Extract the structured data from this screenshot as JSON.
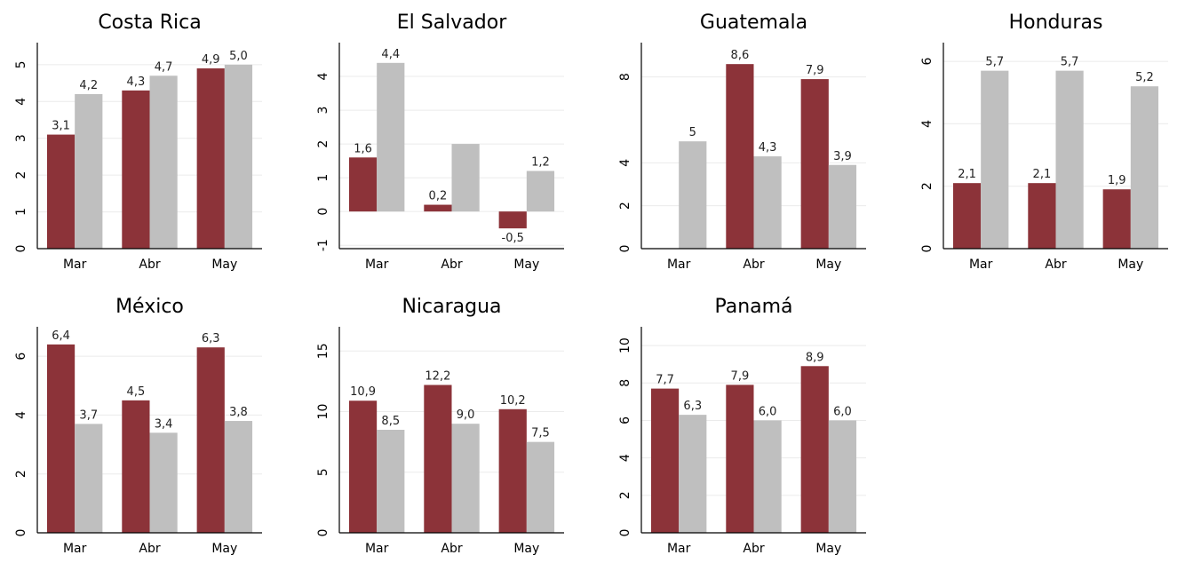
{
  "colors": {
    "series_a": "#8c3339",
    "series_b": "#bfbfbf"
  },
  "chart_data": [
    {
      "type": "bar",
      "title": "Costa Rica",
      "categories": [
        "Mar",
        "Abr",
        "May"
      ],
      "series": [
        {
          "values": [
            3.1,
            4.3,
            4.9
          ]
        },
        {
          "values": [
            4.2,
            4.7,
            5.0
          ]
        }
      ],
      "labels": [
        [
          "3,1",
          "4,3",
          "4,9"
        ],
        [
          "4,2",
          "4,7",
          "5,0"
        ]
      ],
      "yticks": [
        0,
        1,
        2,
        3,
        4,
        5
      ],
      "ylim": [
        0,
        5.6
      ],
      "grid": true
    },
    {
      "type": "bar",
      "title": "El Salvador",
      "categories": [
        "Mar",
        "Abr",
        "May"
      ],
      "series": [
        {
          "values": [
            1.6,
            0.2,
            -0.5
          ]
        },
        {
          "values": [
            4.4,
            2.0,
            1.2
          ]
        }
      ],
      "labels": [
        [
          "1,6",
          "0,2",
          "-0,5"
        ],
        [
          "4,4",
          "",
          "1,2"
        ]
      ],
      "yticks": [
        -1,
        0,
        1,
        2,
        3,
        4
      ],
      "ylim": [
        -1.1,
        5.0
      ],
      "grid": true
    },
    {
      "type": "bar",
      "title": "Guatemala",
      "categories": [
        "Mar",
        "Abr",
        "May"
      ],
      "series": [
        {
          "values": [
            0,
            8.6,
            7.9
          ]
        },
        {
          "values": [
            5,
            4.3,
            3.9
          ]
        }
      ],
      "labels": [
        [
          "",
          "8,6",
          "7,9"
        ],
        [
          "5",
          "4,3",
          "3,9"
        ]
      ],
      "yticks": [
        0,
        2,
        4,
        8
      ],
      "ylim": [
        0,
        9.6
      ],
      "grid": true
    },
    {
      "type": "bar",
      "title": "Honduras",
      "categories": [
        "Mar",
        "Abr",
        "May"
      ],
      "series": [
        {
          "values": [
            2.1,
            2.1,
            1.9
          ]
        },
        {
          "values": [
            5.7,
            5.7,
            5.2
          ]
        }
      ],
      "labels": [
        [
          "2,1",
          "2,1",
          "1,9"
        ],
        [
          "5,7",
          "5,7",
          "5,2"
        ]
      ],
      "yticks": [
        0,
        2,
        4,
        6
      ],
      "ylim": [
        0,
        6.6
      ],
      "grid": true
    },
    {
      "type": "bar",
      "title": "México",
      "categories": [
        "Mar",
        "Abr",
        "May"
      ],
      "series": [
        {
          "values": [
            6.4,
            4.5,
            6.3
          ]
        },
        {
          "values": [
            3.7,
            3.4,
            3.8
          ]
        }
      ],
      "labels": [
        [
          "6,4",
          "4,5",
          "6,3"
        ],
        [
          "3,7",
          "3,4",
          "3,8"
        ]
      ],
      "yticks": [
        0,
        2,
        4,
        6
      ],
      "ylim": [
        0,
        7.0
      ],
      "grid": true
    },
    {
      "type": "bar",
      "title": "Nicaragua",
      "categories": [
        "Mar",
        "Abr",
        "May"
      ],
      "series": [
        {
          "values": [
            10.9,
            12.2,
            10.2
          ]
        },
        {
          "values": [
            8.5,
            9.0,
            7.5
          ]
        }
      ],
      "labels": [
        [
          "10,9",
          "12,2",
          "10,2"
        ],
        [
          "8,5",
          "9,0",
          "7,5"
        ]
      ],
      "yticks": [
        0,
        5,
        10,
        15
      ],
      "ylim": [
        0,
        17.0
      ],
      "grid": true
    },
    {
      "type": "bar",
      "title": "Panamá",
      "categories": [
        "Mar",
        "Abr",
        "May"
      ],
      "series": [
        {
          "values": [
            7.7,
            7.9,
            8.9
          ]
        },
        {
          "values": [
            6.3,
            6.0,
            6.0
          ]
        }
      ],
      "labels": [
        [
          "7,7",
          "7,9",
          "8,9"
        ],
        [
          "6,3",
          "6,0",
          "6,0"
        ]
      ],
      "yticks": [
        0,
        2,
        4,
        6,
        8,
        10
      ],
      "ylim": [
        0,
        11.0
      ],
      "grid": true
    }
  ]
}
